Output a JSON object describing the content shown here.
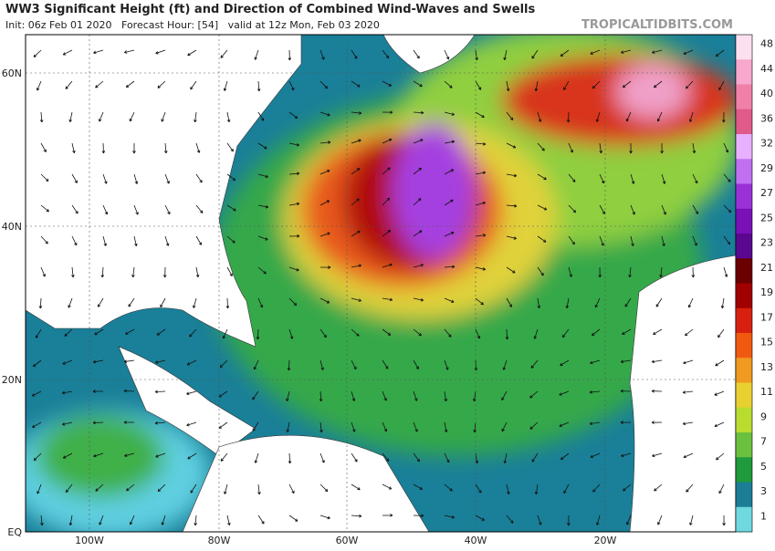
{
  "header": {
    "title": "WW3 Significant Height (ft) and Direction of Combined Wind-Waves and Swells",
    "subtitle": "Init: 06z Feb 01 2020   Forecast Hour: [54]   valid at 12z Mon, Feb 03 2020",
    "brand": "TROPICALTIDBITS.COM"
  },
  "latitude_labels": [
    "60N",
    "40N",
    "20N",
    "EQ"
  ],
  "longitude_labels": [
    "100W",
    "80W",
    "60W",
    "40W",
    "20W"
  ],
  "colorbar": {
    "labels": [
      "48",
      "44",
      "40",
      "36",
      "32",
      "29",
      "27",
      "25",
      "23",
      "21",
      "19",
      "17",
      "15",
      "13",
      "11",
      "9",
      "7",
      "5",
      "3",
      "1"
    ]
  }
}
